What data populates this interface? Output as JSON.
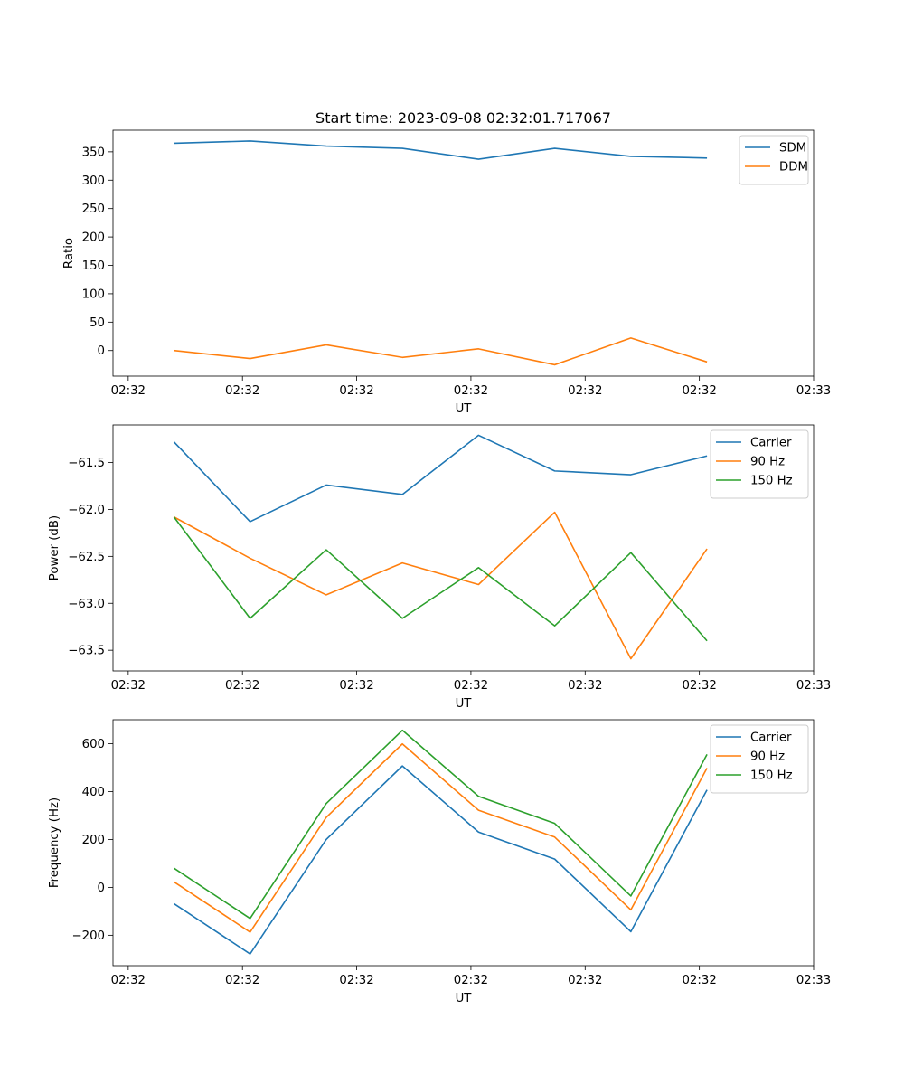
{
  "figure_title": "Start time: 2023-09-08 02:32:01.717067",
  "colors": {
    "blue": "#1f77b4",
    "orange": "#ff7f0e",
    "green": "#2ca02c"
  },
  "chart_data": [
    {
      "type": "line",
      "title": "Start time: 2023-09-08 02:32:01.717067",
      "xlabel": "UT",
      "ylabel": "Ratio",
      "x": [
        1,
        2,
        3,
        4,
        5,
        6,
        7,
        8
      ],
      "xlim": [
        0.2,
        9.4
      ],
      "xticks": [
        0.4,
        1.9,
        3.4,
        4.9,
        6.4,
        7.9,
        9.4
      ],
      "xtick_labels": [
        "02:32",
        "02:32",
        "02:32",
        "02:32",
        "02:32",
        "02:32",
        "02:33"
      ],
      "ylim": [
        -45,
        388
      ],
      "yticks": [
        0,
        50,
        100,
        150,
        200,
        250,
        300,
        350
      ],
      "ytick_labels": [
        "0",
        "50",
        "100",
        "150",
        "200",
        "250",
        "300",
        "350"
      ],
      "legend_position": "top-right",
      "series": [
        {
          "name": "SDM",
          "color": "#1f77b4",
          "values": [
            365,
            369,
            360,
            356,
            337,
            356,
            342,
            339
          ]
        },
        {
          "name": "DDM",
          "color": "#ff7f0e",
          "values": [
            0,
            -14,
            10,
            -12,
            3,
            -25,
            22,
            -20
          ]
        }
      ]
    },
    {
      "type": "line",
      "title": "",
      "xlabel": "UT",
      "ylabel": "Power (dB)",
      "x": [
        1,
        2,
        3,
        4,
        5,
        6,
        7,
        8
      ],
      "xlim": [
        0.2,
        9.4
      ],
      "xticks": [
        0.4,
        1.9,
        3.4,
        4.9,
        6.4,
        7.9,
        9.4
      ],
      "xtick_labels": [
        "02:32",
        "02:32",
        "02:32",
        "02:32",
        "02:32",
        "02:32",
        "02:33"
      ],
      "ylim": [
        -63.72,
        -61.1
      ],
      "yticks": [
        -63.5,
        -63.0,
        -62.5,
        -62.0,
        -61.5
      ],
      "ytick_labels": [
        "−63.5",
        "−63.0",
        "−62.5",
        "−62.0",
        "−61.5"
      ],
      "legend_position": "top-right",
      "series": [
        {
          "name": "Carrier",
          "color": "#1f77b4",
          "values": [
            -61.28,
            -62.13,
            -61.74,
            -61.84,
            -61.21,
            -61.59,
            -61.63,
            -61.43
          ]
        },
        {
          "name": "90 Hz",
          "color": "#ff7f0e",
          "values": [
            -62.08,
            -62.52,
            -62.91,
            -62.57,
            -62.8,
            -62.03,
            -63.59,
            -62.42
          ]
        },
        {
          "name": "150 Hz",
          "color": "#2ca02c",
          "values": [
            -62.08,
            -63.16,
            -62.43,
            -63.16,
            -62.62,
            -63.24,
            -62.46,
            -63.4
          ]
        }
      ]
    },
    {
      "type": "line",
      "title": "",
      "xlabel": "UT",
      "ylabel": "Frequency (Hz)",
      "x": [
        1,
        2,
        3,
        4,
        5,
        6,
        7,
        8
      ],
      "xlim": [
        0.2,
        9.4
      ],
      "xticks": [
        0.4,
        1.9,
        3.4,
        4.9,
        6.4,
        7.9,
        9.4
      ],
      "xtick_labels": [
        "02:32",
        "02:32",
        "02:32",
        "02:32",
        "02:32",
        "02:32",
        "02:33"
      ],
      "ylim": [
        -327,
        700
      ],
      "yticks": [
        -200,
        0,
        200,
        400,
        600
      ],
      "ytick_labels": [
        "−200",
        "0",
        "200",
        "400",
        "600"
      ],
      "legend_position": "top-right",
      "series": [
        {
          "name": "Carrier",
          "color": "#1f77b4",
          "values": [
            -68,
            -278,
            200,
            507,
            231,
            118,
            -185,
            407
          ]
        },
        {
          "name": "90 Hz",
          "color": "#ff7f0e",
          "values": [
            23,
            -187,
            292,
            599,
            322,
            210,
            -94,
            498
          ]
        },
        {
          "name": "150 Hz",
          "color": "#2ca02c",
          "values": [
            80,
            -130,
            350,
            656,
            380,
            267,
            -36,
            555
          ]
        }
      ]
    }
  ]
}
